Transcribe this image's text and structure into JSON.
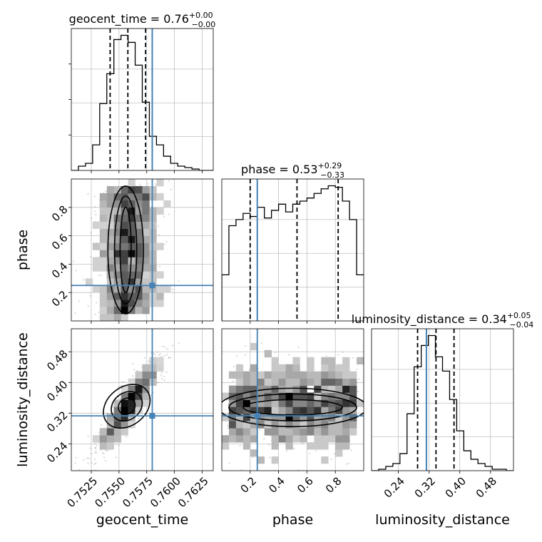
{
  "chart_data": {
    "type": "corner",
    "parameters": [
      {
        "name": "geocent_time",
        "title": "geocent_time = 0.76",
        "title_plus": "+0.00",
        "title_minus": "−0.00",
        "range": [
          0.7507,
          0.7635
        ],
        "truth": 0.758,
        "quantiles": [
          0.7542,
          0.7558,
          0.7574
        ],
        "tick_values": [
          0.7525,
          0.755,
          0.7575,
          0.76,
          0.7625
        ],
        "tick_labels": [
          "0.7525",
          "0.7550",
          "0.7575",
          "0.7600",
          "0.7625"
        ],
        "xlabel": "geocent_time",
        "hist": {
          "bin_start": 0.7507,
          "bin_width": 0.00064,
          "counts": [
            0,
            3,
            5,
            18,
            47,
            68,
            92,
            95,
            90,
            74,
            48,
            24,
            18,
            10,
            5,
            3,
            2,
            1,
            0,
            0
          ]
        }
      },
      {
        "name": "phase",
        "title": "phase = 0.53",
        "title_plus": "+0.29",
        "title_minus": "−0.33",
        "range": [
          0.0,
          1.0
        ],
        "truth": 0.25,
        "quantiles": [
          0.2,
          0.53,
          0.82
        ],
        "tick_values": [
          0.2,
          0.4,
          0.6,
          0.8
        ],
        "tick_labels": [
          "0.2",
          "0.4",
          "0.6",
          "0.8"
        ],
        "xlabel": "phase",
        "ylabel": "phase",
        "hist": {
          "bin_start": 0.0,
          "bin_width": 0.05,
          "counts": [
            30,
            62,
            66,
            70,
            68,
            74,
            67,
            72,
            76,
            71,
            76,
            78,
            80,
            83,
            86,
            88,
            87,
            78,
            66,
            30
          ]
        }
      },
      {
        "name": "luminosity_distance",
        "title": "luminosity_distance = 0.34",
        "title_plus": "+0.05",
        "title_minus": "−0.04",
        "range": [
          0.17,
          0.54
        ],
        "truth": 0.313,
        "quantiles": [
          0.29,
          0.338,
          0.385
        ],
        "tick_values": [
          0.24,
          0.32,
          0.4,
          0.48
        ],
        "tick_labels": [
          "0.24",
          "0.32",
          "0.40",
          "0.48"
        ],
        "xlabel": "luminosity_distance",
        "ylabel": "luminosity_distance",
        "hist": {
          "bin_start": 0.17,
          "bin_width": 0.0185,
          "counts": [
            0,
            1,
            3,
            5,
            12,
            40,
            73,
            88,
            95,
            80,
            70,
            50,
            28,
            14,
            8,
            5,
            3,
            1,
            1,
            0
          ]
        }
      }
    ],
    "grid": true,
    "colors": {
      "truth": "#4682b4",
      "line": "#000000",
      "grid": "#c0c0c0",
      "scatter": "#8a8a8a"
    }
  }
}
